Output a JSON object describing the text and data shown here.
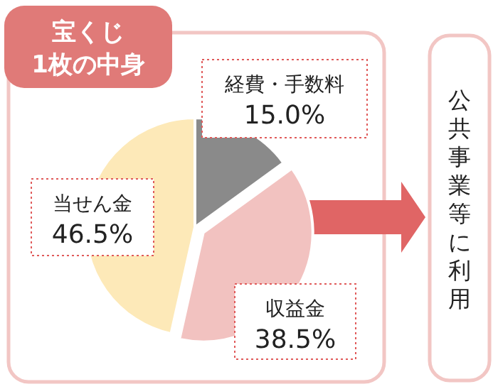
{
  "chart_data": {
    "type": "pie",
    "title": "宝くじ\n1枚の中身",
    "categories": [
      "経費・手数料",
      "収益金",
      "当せん金"
    ],
    "values": [
      15.0,
      38.5,
      46.5
    ],
    "value_labels": [
      "15.0%",
      "38.5%",
      "46.5%"
    ],
    "colors": [
      "#8a8a8a",
      "#f2c2c0",
      "#fde9b8"
    ],
    "annotations": [
      "公共事業等に利用"
    ]
  }
}
